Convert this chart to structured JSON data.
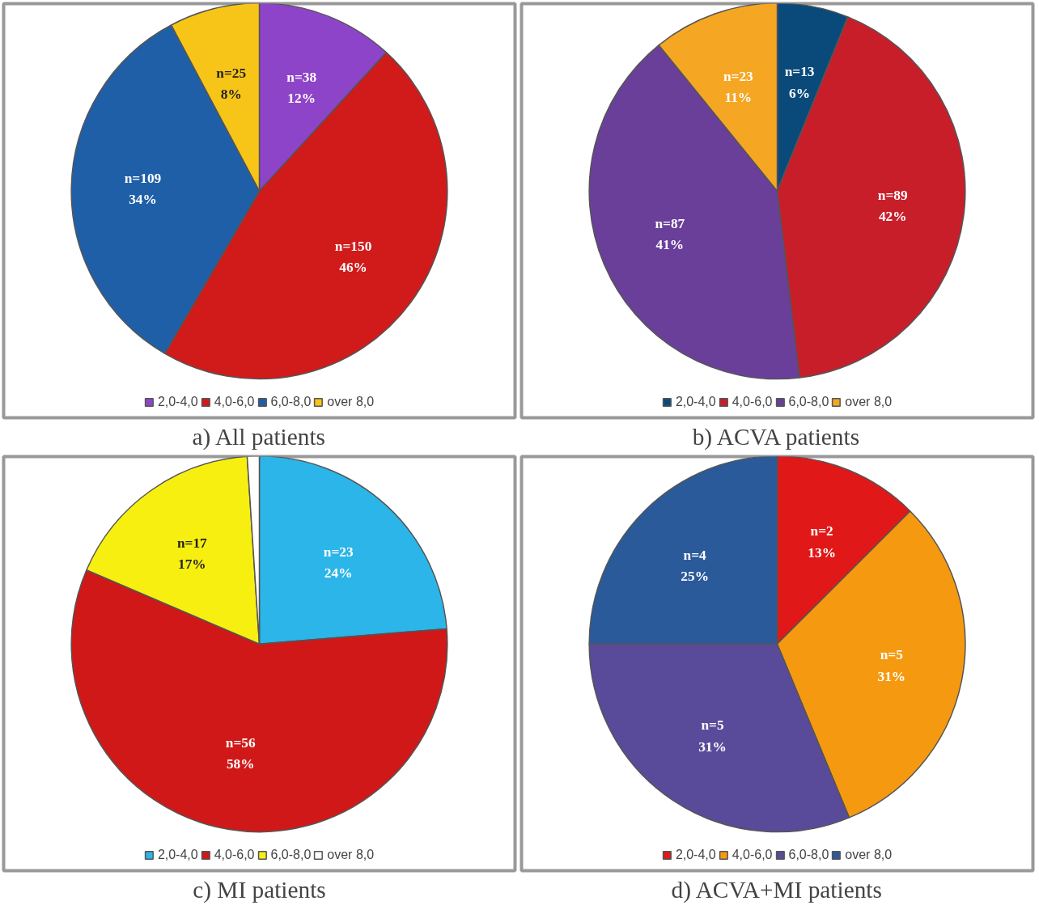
{
  "chart_data": [
    {
      "type": "pie",
      "title": "a) All patients",
      "categories": [
        "2,0-4,0",
        "4,0-6,0",
        "6,0-8,0",
        "over 8,0"
      ],
      "values": [
        38,
        150,
        109,
        25
      ],
      "colors": [
        "#8e44c8",
        "#d11a1a",
        "#1f5fa8",
        "#f7c518"
      ],
      "value_labels": [
        "n=38\n12%",
        "n=150\n46%",
        "n=109\n34%",
        "n=25\n8%"
      ],
      "legend": "bottom"
    },
    {
      "type": "pie",
      "title": "b) ACVA patients",
      "categories": [
        "2,0-4,0",
        "4,0-6,0",
        "6,0-8,0",
        "over 8,0"
      ],
      "values": [
        13,
        89,
        87,
        23
      ],
      "colors": [
        "#0a4a7a",
        "#c81e2a",
        "#6a3f9a",
        "#f5a623"
      ],
      "value_labels": [
        "n=13\n6%",
        "n=89\n42%",
        "n=87\n41%",
        "n=23\n11%"
      ],
      "legend": "bottom"
    },
    {
      "type": "pie",
      "title": "c) MI patients",
      "categories": [
        "2,0-4,0",
        "4,0-6,0",
        "6,0-8,0",
        "over 8,0"
      ],
      "values": [
        23,
        56,
        17,
        1
      ],
      "colors": [
        "#2bb5e8",
        "#d01818",
        "#f7ef10",
        "#ffffff"
      ],
      "value_labels": [
        "n=23\n24%",
        "n=56\n58%",
        "n=17\n17%",
        null
      ],
      "legend": "bottom"
    },
    {
      "type": "pie",
      "title": "d) ACVA+MI patients",
      "categories": [
        "2,0-4,0",
        "4,0-6,0",
        "6,0-8,0",
        "over 8,0"
      ],
      "values": [
        2,
        5,
        5,
        4
      ],
      "colors": [
        "#e01818",
        "#f59a10",
        "#5a4a9a",
        "#2a5a9a"
      ],
      "value_labels": [
        "n=2\n13%",
        "n=5\n31%",
        "n=5\n31%",
        "n=4\n25%"
      ],
      "legend": "bottom"
    }
  ]
}
